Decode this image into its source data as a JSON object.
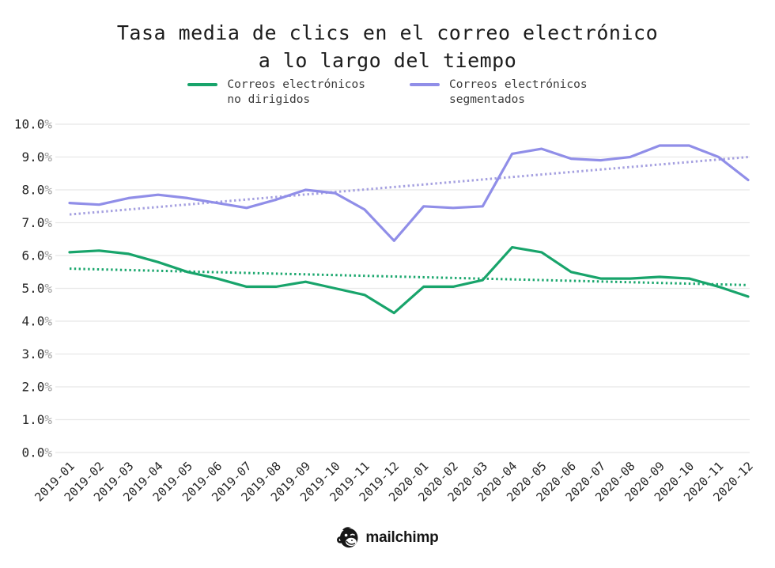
{
  "chart_data": {
    "type": "line",
    "title": "Tasa media de clics en el correo electrónico\na lo largo del tiempo",
    "x": [
      "2019-01",
      "2019-02",
      "2019-03",
      "2019-04",
      "2019-05",
      "2019-06",
      "2019-07",
      "2019-08",
      "2019-09",
      "2019-10",
      "2019-11",
      "2019-12",
      "2020-01",
      "2020-02",
      "2020-03",
      "2020-04",
      "2020-05",
      "2020-06",
      "2020-07",
      "2020-08",
      "2020-09",
      "2020-10",
      "2020-11",
      "2020-12"
    ],
    "series": [
      {
        "name": "Correos electrónicos\nno dirigidos",
        "color": "#18a46b",
        "values": [
          6.1,
          6.15,
          6.05,
          5.8,
          5.5,
          5.3,
          5.05,
          5.05,
          5.2,
          5.0,
          4.8,
          4.25,
          5.05,
          5.05,
          5.25,
          6.25,
          6.1,
          5.5,
          5.3,
          5.3,
          5.35,
          5.3,
          5.05,
          4.75
        ],
        "trendline": {
          "start": 5.6,
          "end": 5.1,
          "color": "#1ba76e",
          "style": "dotted"
        }
      },
      {
        "name": "Correos electrónicos\nsegmentados",
        "color": "#908ee8",
        "values": [
          7.6,
          7.55,
          7.75,
          7.85,
          7.75,
          7.6,
          7.45,
          7.7,
          8.0,
          7.9,
          7.4,
          6.45,
          7.5,
          7.45,
          7.5,
          9.1,
          9.25,
          8.95,
          8.9,
          9.0,
          9.35,
          9.35,
          9.0,
          8.3
        ],
        "trendline": {
          "start": 7.25,
          "end": 9.0,
          "color": "#a5a0e0",
          "style": "dotted"
        }
      }
    ],
    "ylim": [
      0,
      10
    ],
    "ytick_step": 1,
    "ytick_suffix": "%",
    "grid": "horizontal",
    "grid_color": "#e8e8e8",
    "legend_position": "top",
    "x_label_rotation": 45
  },
  "footer": {
    "brand": "mailchimp"
  }
}
